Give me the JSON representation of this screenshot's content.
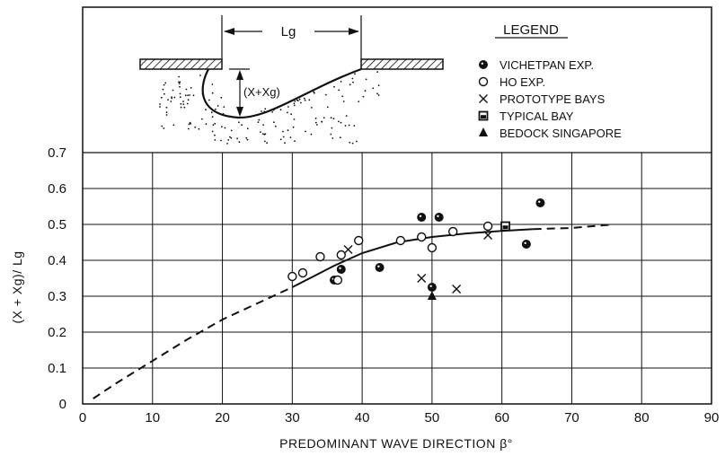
{
  "chart_data": {
    "type": "scatter",
    "xlabel": "PREDOMINANT WAVE DIRECTION β°",
    "ylabel": "(X + Xg)/ Lg",
    "xlim": [
      0,
      90
    ],
    "ylim": [
      0,
      0.7
    ],
    "x_ticks": [
      "0",
      "10",
      "20",
      "30",
      "40",
      "50",
      "60",
      "70",
      "80",
      "90"
    ],
    "y_ticks": [
      "0",
      "0.1",
      "0.2",
      "0.3",
      "0.4",
      "0.5",
      "0.6",
      "0.7"
    ],
    "grid": true,
    "legend": {
      "title": "LEGEND",
      "placement": "top-right",
      "entries": [
        "VICHETPAN EXP.",
        "HO EXP.",
        "PROTOTYPE BAYS",
        "TYPICAL BAY",
        "BEDOCK SINGAPORE"
      ]
    },
    "series": [
      {
        "name": "VICHETPAN EXP.",
        "marker": "filled-circle",
        "points": [
          [
            36,
            0.345
          ],
          [
            37,
            0.375
          ],
          [
            42.5,
            0.38
          ],
          [
            48.5,
            0.52
          ],
          [
            51,
            0.52
          ],
          [
            50,
            0.325
          ],
          [
            63.5,
            0.445
          ],
          [
            65.5,
            0.56
          ]
        ]
      },
      {
        "name": "HO EXP.",
        "marker": "open-circle",
        "points": [
          [
            30,
            0.355
          ],
          [
            31.5,
            0.365
          ],
          [
            34,
            0.41
          ],
          [
            36.5,
            0.345
          ],
          [
            37,
            0.415
          ],
          [
            39.5,
            0.455
          ],
          [
            45.5,
            0.455
          ],
          [
            48.5,
            0.465
          ],
          [
            50,
            0.435
          ],
          [
            53,
            0.48
          ],
          [
            58,
            0.495
          ]
        ]
      },
      {
        "name": "PROTOTYPE BAYS",
        "marker": "cross",
        "points": [
          [
            38,
            0.43
          ],
          [
            48.5,
            0.35
          ],
          [
            53.5,
            0.32
          ],
          [
            58,
            0.47
          ]
        ]
      },
      {
        "name": "TYPICAL BAY",
        "marker": "square",
        "points": [
          [
            60.5,
            0.495
          ]
        ]
      },
      {
        "name": "BEDOCK SINGAPORE",
        "marker": "triangle",
        "points": [
          [
            50,
            0.3
          ]
        ]
      }
    ],
    "fit_curve": {
      "solid": [
        [
          30,
          0.325
        ],
        [
          33,
          0.355
        ],
        [
          36,
          0.385
        ],
        [
          40,
          0.42
        ],
        [
          45,
          0.45
        ],
        [
          50,
          0.465
        ],
        [
          55,
          0.475
        ],
        [
          60,
          0.482
        ],
        [
          64.5,
          0.487
        ]
      ],
      "dashed_low": [
        [
          1.5,
          0.015
        ],
        [
          5,
          0.06
        ],
        [
          10,
          0.12
        ],
        [
          15,
          0.18
        ],
        [
          20,
          0.235
        ],
        [
          25,
          0.28
        ],
        [
          30,
          0.325
        ]
      ],
      "dashed_high": [
        [
          64.5,
          0.487
        ],
        [
          70,
          0.49
        ],
        [
          76,
          0.5
        ]
      ]
    },
    "inset": {
      "width_label": "Lg",
      "depth_label": "(X+Xg)"
    }
  }
}
